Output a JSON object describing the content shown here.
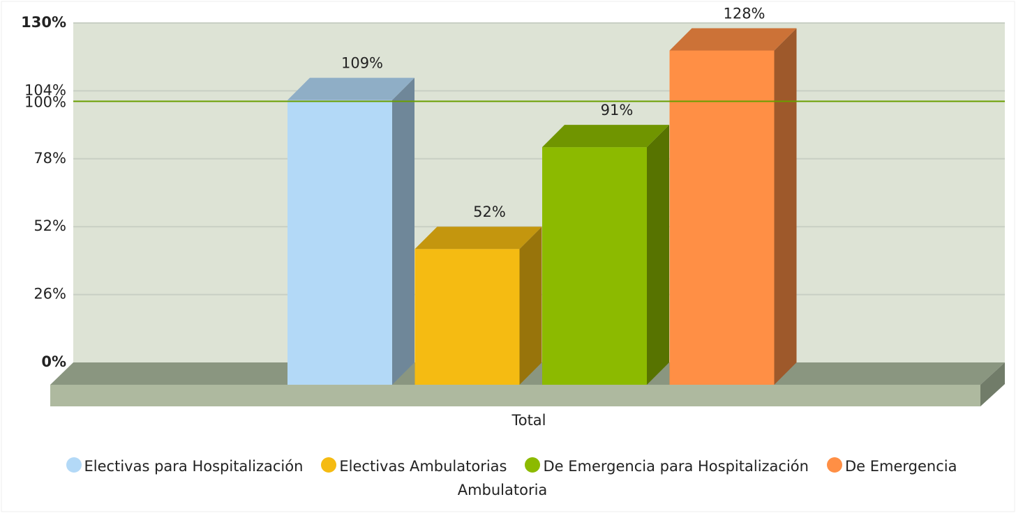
{
  "chart_data": {
    "type": "bar3d",
    "categories": [
      "Total"
    ],
    "series": [
      {
        "name": "Electivas para Hospitalización",
        "color": "#b3d9f7",
        "values": [
          109
        ],
        "value_labels": [
          "109%"
        ]
      },
      {
        "name": "Electivas Ambulatorias",
        "color": "#f5bb12",
        "values": [
          52
        ],
        "value_labels": [
          "52%"
        ]
      },
      {
        "name": "De Emergencia para Hospitalización",
        "color": "#8cba00",
        "values": [
          91
        ],
        "value_labels": [
          "91%"
        ]
      },
      {
        "name": "De Emergencia Ambulatoria",
        "color": "#ff8f45",
        "values": [
          128
        ],
        "value_labels": [
          "128%"
        ]
      }
    ],
    "ylim": [
      0,
      130
    ],
    "yticks": [
      {
        "value": 0,
        "label": "0%"
      },
      {
        "value": 26,
        "label": "26%"
      },
      {
        "value": 52,
        "label": "52%"
      },
      {
        "value": 78,
        "label": "78%"
      },
      {
        "value": 104,
        "label": "104%"
      },
      {
        "value": 130,
        "label": "130%"
      }
    ],
    "reference_line": {
      "value": 100,
      "label": "100%",
      "color": "#6a9e00"
    },
    "grid": true
  }
}
